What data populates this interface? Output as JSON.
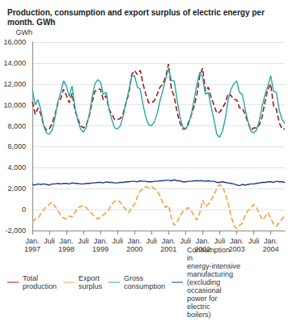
{
  "chart_data": {
    "type": "line",
    "title": "Production, consumption and export surplus of electric energy per month. GWh",
    "y_label": "GWh",
    "categories": [
      "Jan.\n1997",
      null,
      null,
      null,
      null,
      null,
      "Juli",
      null,
      null,
      null,
      null,
      null,
      "Jan.\n1998",
      null,
      null,
      null,
      null,
      null,
      "Juli",
      null,
      null,
      null,
      null,
      null,
      "Jan.\n1999",
      null,
      null,
      null,
      null,
      null,
      "Juli",
      null,
      null,
      null,
      null,
      null,
      "Jan.\n2000",
      null,
      null,
      null,
      null,
      null,
      "Juli",
      null,
      null,
      null,
      null,
      null,
      "Jan.\n2001",
      null,
      null,
      null,
      null,
      null,
      "Juli",
      null,
      null,
      null,
      null,
      null,
      "Jan.\n2002",
      null,
      null,
      null,
      null,
      null,
      "Juli",
      null,
      null,
      null,
      null,
      null,
      "Jan.\n2003",
      null,
      null,
      null,
      null,
      null,
      "Juli",
      null,
      null,
      null,
      null,
      null,
      "Jan.\n2004",
      null,
      null,
      null,
      null,
      null
    ],
    "series": [
      {
        "name": "Total production",
        "color": "#9b1c1c",
        "line_style": "dashed",
        "values": [
          10300,
          9100,
          9700,
          9100,
          8000,
          7600,
          7700,
          8300,
          9100,
          10200,
          10600,
          11500,
          10900,
          10200,
          11100,
          9500,
          8700,
          8000,
          7800,
          8100,
          8900,
          10200,
          11300,
          11500,
          11500,
          10500,
          10900,
          9600,
          9100,
          8600,
          8600,
          8700,
          9200,
          10200,
          11100,
          12900,
          13300,
          12900,
          13300,
          12000,
          11000,
          10200,
          10200,
          10400,
          11000,
          11700,
          12000,
          12700,
          13900,
          11500,
          10800,
          9300,
          8300,
          7700,
          7700,
          8300,
          9000,
          9900,
          11000,
          12800,
          13500,
          11300,
          11700,
          10700,
          10000,
          9200,
          9300,
          9700,
          10200,
          11100,
          10900,
          10500,
          10500,
          9700,
          9700,
          9100,
          8300,
          7600,
          7800,
          7800,
          8100,
          8900,
          10300,
          11500,
          12000,
          9900,
          9600,
          8300,
          7700,
          7700
        ]
      },
      {
        "name": "Export surplus",
        "color": "#f5a044",
        "line_style": "dashed",
        "values": [
          -1200,
          -900,
          -800,
          -400,
          0,
          300,
          500,
          700,
          300,
          -100,
          -600,
          -800,
          -900,
          -600,
          -700,
          -300,
          200,
          300,
          400,
          200,
          -100,
          -400,
          -700,
          -900,
          -700,
          -500,
          -300,
          0,
          500,
          800,
          900,
          700,
          300,
          0,
          -300,
          200,
          500,
          1200,
          1800,
          2000,
          2200,
          2100,
          2200,
          2000,
          1800,
          1300,
          600,
          200,
          400,
          -800,
          -1500,
          -1200,
          -600,
          -200,
          0,
          200,
          -100,
          -600,
          -1000,
          -300,
          900,
          300,
          500,
          900,
          1400,
          2000,
          2400,
          2200,
          1500,
          600,
          -600,
          -1500,
          -1800,
          -1500,
          -1300,
          -500,
          -100,
          100,
          500,
          200,
          -400,
          -1000,
          -700,
          -300,
          -800,
          -1400,
          -1600,
          -1200,
          -900,
          -500
        ]
      },
      {
        "name": "Gross consumption",
        "color": "#2aa6a6",
        "line_style": "solid",
        "values": [
          11500,
          10000,
          10500,
          9500,
          8000,
          7300,
          7200,
          7600,
          8800,
          10300,
          11200,
          12300,
          11800,
          10800,
          11800,
          9800,
          8500,
          7700,
          7400,
          7900,
          9000,
          10600,
          12000,
          12400,
          12200,
          11000,
          11200,
          9600,
          8600,
          7800,
          7700,
          8000,
          8900,
          10200,
          11400,
          12700,
          12800,
          11700,
          11500,
          10000,
          8800,
          8100,
          8000,
          8400,
          9200,
          10400,
          11400,
          12500,
          13500,
          12300,
          12300,
          10500,
          8900,
          7900,
          7700,
          8100,
          9100,
          10500,
          12000,
          13100,
          12600,
          11000,
          11200,
          9800,
          8600,
          7200,
          6900,
          7500,
          8700,
          10500,
          11500,
          12000,
          12300,
          11200,
          11000,
          9600,
          8400,
          7500,
          7300,
          7600,
          8500,
          9900,
          11000,
          11800,
          12800,
          11300,
          11200,
          9500,
          8600,
          8200
        ]
      },
      {
        "name": "Consumption in energy-intensive manufacturing (excluding occasional power for electric boilers)",
        "color": "#1f3a8c",
        "line_style": "solid",
        "values": [
          2400,
          2350,
          2450,
          2400,
          2450,
          2400,
          2350,
          2450,
          2450,
          2500,
          2450,
          2500,
          2500,
          2450,
          2550,
          2500,
          2500,
          2450,
          2450,
          2500,
          2500,
          2550,
          2550,
          2600,
          2600,
          2550,
          2650,
          2600,
          2600,
          2550,
          2550,
          2600,
          2600,
          2650,
          2650,
          2700,
          2700,
          2650,
          2750,
          2700,
          2700,
          2650,
          2650,
          2700,
          2700,
          2750,
          2750,
          2800,
          2800,
          2750,
          2850,
          2750,
          2750,
          2650,
          2650,
          2700,
          2700,
          2750,
          2750,
          2750,
          2750,
          2700,
          2750,
          2700,
          2700,
          2600,
          2600,
          2650,
          2600,
          2550,
          2500,
          2450,
          2350,
          2300,
          2400,
          2350,
          2400,
          2450,
          2450,
          2500,
          2550,
          2600,
          2600,
          2650,
          2650,
          2600,
          2700,
          2650,
          2650,
          2600
        ]
      }
    ],
    "ylim": [
      -2000,
      16000
    ],
    "yticks": [
      -2000,
      0,
      2000,
      4000,
      6000,
      8000,
      10000,
      12000,
      14000,
      16000
    ],
    "grid": true,
    "legend": "bottom"
  }
}
